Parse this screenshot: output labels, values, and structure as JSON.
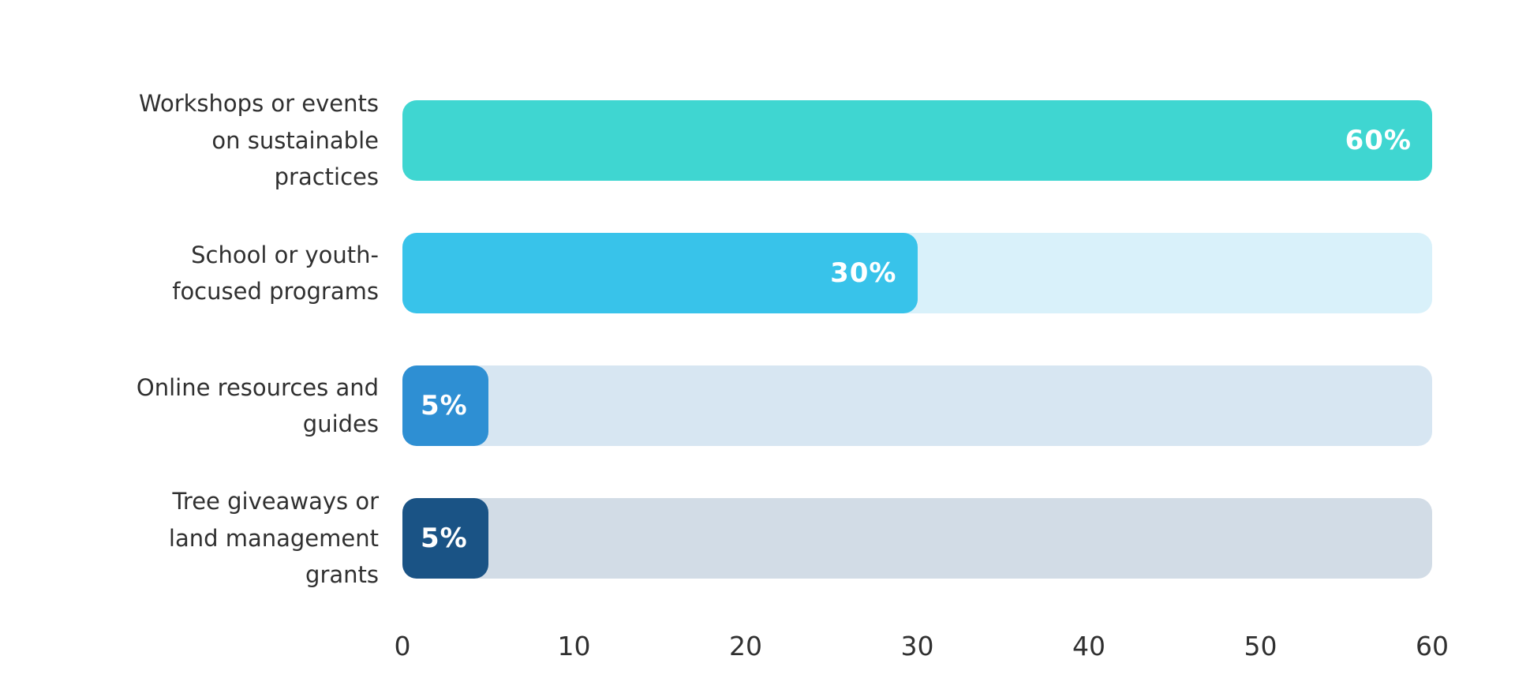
{
  "chart_data": {
    "type": "bar",
    "orientation": "horizontal",
    "title": "",
    "xlabel": "",
    "ylabel": "",
    "xlim": [
      0,
      60
    ],
    "grid": false,
    "legend": false,
    "categories": [
      "Workshops or events on sustainable practices",
      "School or youth-focused programs",
      "Online resources and guides",
      "Tree giveaways or land management grants"
    ],
    "values": [
      60,
      30,
      5,
      5
    ],
    "rows": [
      {
        "label": "Workshops or events on sustainable practices",
        "label_lines": [
          "Workshops or events",
          "on sustainable",
          "practices"
        ],
        "value": 60,
        "value_label": "60%",
        "bar_color": "#3FD6D1",
        "track_color": "#FFFFFF"
      },
      {
        "label": "School or youth-focused programs",
        "label_lines": [
          "School or youth-",
          "focused programs"
        ],
        "value": 30,
        "value_label": "30%",
        "bar_color": "#38C3EA",
        "track_color": "#D9F1FA"
      },
      {
        "label": "Online resources and guides",
        "label_lines": [
          "Online resources and",
          "guides"
        ],
        "value": 5,
        "value_label": "5%",
        "bar_color": "#2E8FD3",
        "track_color": "#D7E6F2"
      },
      {
        "label": "Tree giveaways or land management grants",
        "label_lines": [
          "Tree giveaways or",
          "land management",
          "grants"
        ],
        "value": 5,
        "value_label": "5%",
        "bar_color": "#1A5385",
        "track_color": "#D2DCE6"
      }
    ],
    "axis": {
      "tick_labels": [
        "0",
        "10",
        "20",
        "30",
        "40",
        "50",
        "60"
      ]
    },
    "colors": {
      "background": "#FFFFFF",
      "label_text": "#303030",
      "value_text": "#FFFFFF",
      "tick_text": "#303030"
    }
  }
}
